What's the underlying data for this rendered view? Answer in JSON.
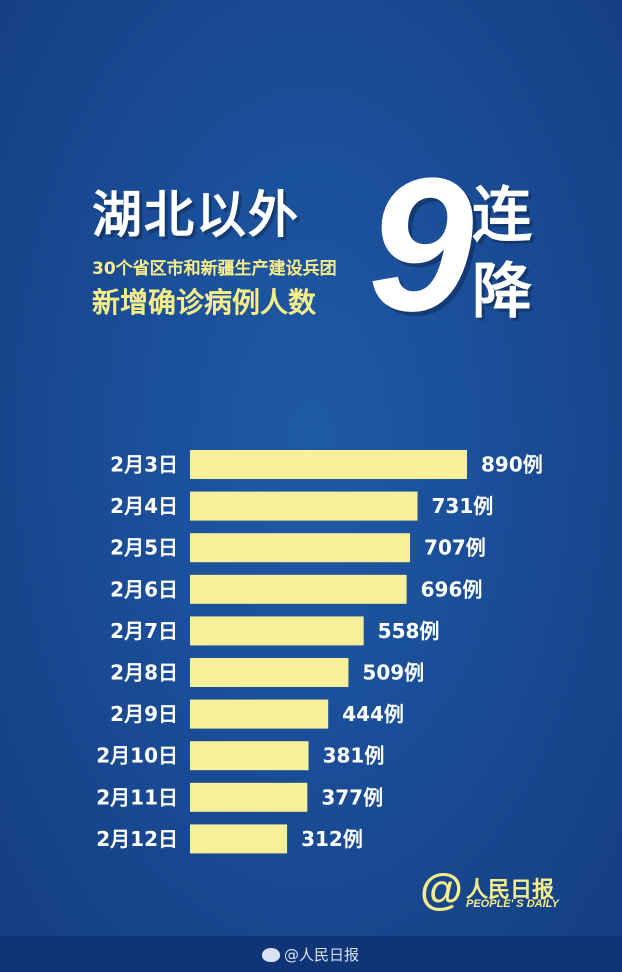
{
  "title": {
    "main": "湖北以外",
    "sub1": "30个省区市和新疆生产建设兵团",
    "sub2": "新增确诊病例人数",
    "big_number": "9",
    "big_char1": "连",
    "big_char2": "降"
  },
  "chart_data": {
    "type": "bar",
    "orientation": "horizontal",
    "categories": [
      "2月3日",
      "2月4日",
      "2月5日",
      "2月6日",
      "2月7日",
      "2月8日",
      "2月9日",
      "2月10日",
      "2月11日",
      "2月12日"
    ],
    "values": [
      890,
      731,
      707,
      696,
      558,
      509,
      444,
      381,
      377,
      312
    ],
    "value_labels": [
      "890例",
      "731例",
      "707例",
      "696例",
      "558例",
      "509例",
      "444例",
      "381例",
      "377例",
      "312例"
    ],
    "bar_color": "#f8f099",
    "xlim": [
      0,
      890
    ]
  },
  "logo": {
    "at_symbol": "@",
    "name": "人民日报",
    "english": "PEOPLE' S DAILY"
  },
  "watermark": {
    "text": "@人民日报",
    "icon": "weibo-icon"
  },
  "colors": {
    "background": "#1a4d97",
    "accent_yellow": "#f7ee8a",
    "text_white": "#ffffff"
  }
}
